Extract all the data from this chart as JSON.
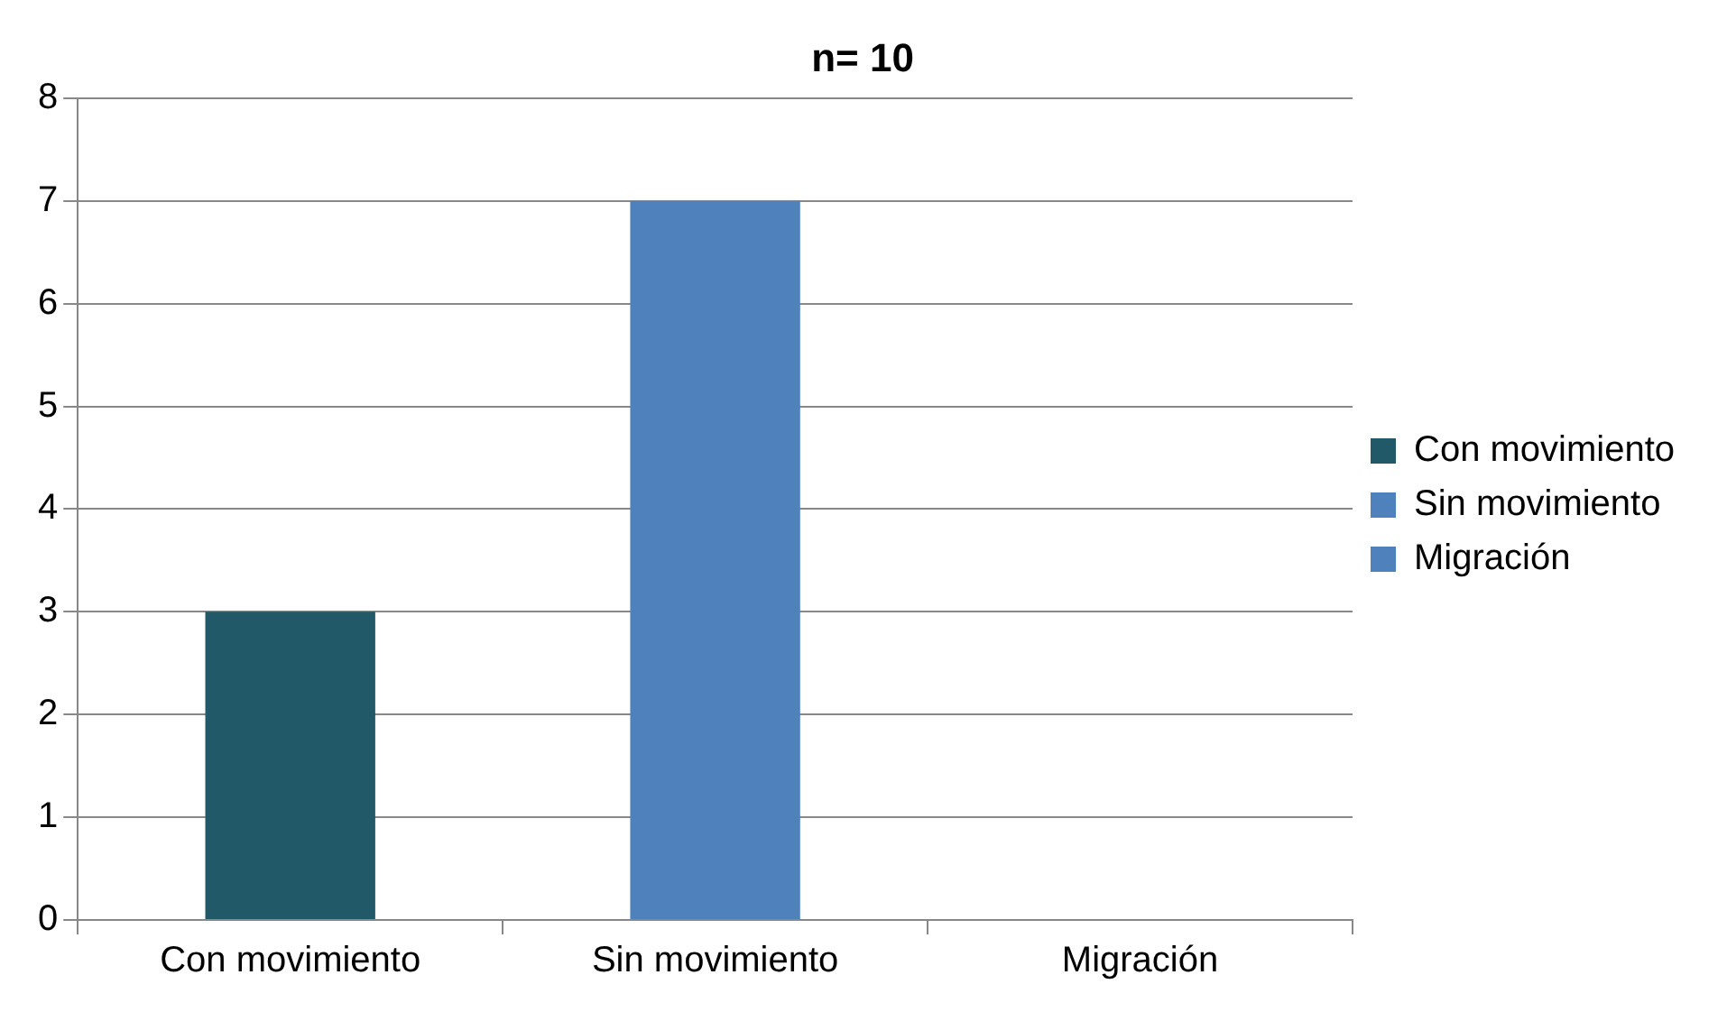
{
  "chart_data": {
    "type": "bar",
    "title": "n= 10",
    "categories": [
      "Con movimiento",
      "Sin movimiento",
      "Migración"
    ],
    "series": [
      {
        "name": "Con movimiento",
        "color": "#215968",
        "values": [
          3,
          null,
          null
        ]
      },
      {
        "name": "Sin movimiento",
        "color": "#4f81bd",
        "values": [
          null,
          7,
          null
        ]
      },
      {
        "name": "Migración",
        "color": "#4f81bd",
        "values": [
          null,
          null,
          0
        ]
      }
    ],
    "ylim": [
      0,
      8
    ],
    "yticks": [
      0,
      1,
      2,
      3,
      4,
      5,
      6,
      7,
      8
    ],
    "grid": "y",
    "legend": "right"
  }
}
